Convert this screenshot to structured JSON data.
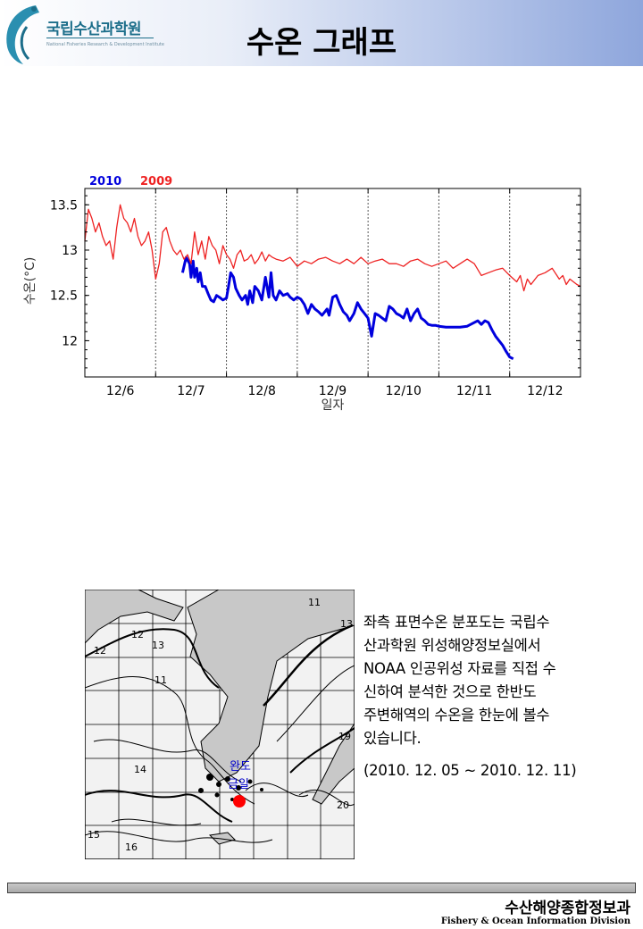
{
  "header": {
    "logo_kr": "국립수산과학원",
    "logo_en": "National Fisheries Research & Development Institute",
    "title": "수온 그래프"
  },
  "chart_data": {
    "type": "line",
    "title": "",
    "xlabel": "일자",
    "ylabel": "수온(°C)",
    "ylim": [
      11.6,
      13.68
    ],
    "xlim": [
      0,
      7
    ],
    "ytick_labels": [
      "12",
      "12.5",
      "13",
      "13.5"
    ],
    "yticks": [
      12,
      12.5,
      13,
      13.5
    ],
    "xtick_labels": [
      "12/6",
      "12/7",
      "12/8",
      "12/9",
      "12/10",
      "12/11",
      "12/12"
    ],
    "xtick_label_positions": [
      0.5,
      1.5,
      2.5,
      3.5,
      4.5,
      5.5,
      6.5
    ],
    "day_boundaries": [
      1,
      2,
      3,
      4,
      5,
      6
    ],
    "grid": "vertical-dashed",
    "legend": "top-left",
    "series": [
      {
        "name": "2010",
        "color": "#0000dd",
        "x": [
          1.38,
          1.43,
          1.48,
          1.5,
          1.53,
          1.55,
          1.58,
          1.6,
          1.63,
          1.66,
          1.7,
          1.74,
          1.78,
          1.82,
          1.86,
          1.9,
          1.95,
          2.0,
          2.03,
          2.06,
          2.1,
          2.13,
          2.18,
          2.22,
          2.27,
          2.3,
          2.33,
          2.37,
          2.4,
          2.45,
          2.5,
          2.55,
          2.6,
          2.63,
          2.66,
          2.7,
          2.75,
          2.8,
          2.86,
          2.9,
          2.95,
          3.0,
          3.05,
          3.1,
          3.15,
          3.2,
          3.25,
          3.3,
          3.35,
          3.42,
          3.45,
          3.5,
          3.55,
          3.6,
          3.65,
          3.7,
          3.74,
          3.8,
          3.85,
          3.9,
          3.95,
          4.0,
          4.05,
          4.1,
          4.15,
          4.2,
          4.25,
          4.3,
          4.35,
          4.4,
          4.45,
          4.5,
          4.55,
          4.6,
          4.65,
          4.7,
          4.75,
          4.8,
          4.85,
          4.9,
          4.95,
          5.0,
          5.1,
          5.2,
          5.3,
          5.4,
          5.5,
          5.55,
          5.6,
          5.65,
          5.7,
          5.75,
          5.8,
          5.85,
          5.9,
          5.95,
          6.0,
          6.05
        ],
        "y": [
          12.75,
          12.92,
          12.85,
          12.7,
          12.88,
          12.7,
          12.8,
          12.65,
          12.75,
          12.6,
          12.6,
          12.52,
          12.45,
          12.43,
          12.5,
          12.48,
          12.45,
          12.47,
          12.6,
          12.75,
          12.7,
          12.58,
          12.5,
          12.45,
          12.5,
          12.4,
          12.55,
          12.42,
          12.6,
          12.55,
          12.45,
          12.7,
          12.48,
          12.75,
          12.5,
          12.45,
          12.55,
          12.5,
          12.52,
          12.48,
          12.45,
          12.48,
          12.46,
          12.4,
          12.3,
          12.4,
          12.35,
          12.32,
          12.28,
          12.35,
          12.28,
          12.48,
          12.5,
          12.4,
          12.32,
          12.28,
          12.22,
          12.3,
          12.42,
          12.35,
          12.3,
          12.25,
          12.05,
          12.3,
          12.28,
          12.25,
          12.22,
          12.38,
          12.35,
          12.3,
          12.28,
          12.25,
          12.35,
          12.22,
          12.3,
          12.35,
          12.25,
          12.22,
          12.18,
          12.17,
          12.17,
          12.16,
          12.15,
          12.15,
          12.15,
          12.16,
          12.2,
          12.22,
          12.18,
          12.22,
          12.2,
          12.12,
          12.05,
          12.0,
          11.95,
          11.88,
          11.82,
          11.8
        ]
      },
      {
        "name": "2009",
        "color": "#ee2222",
        "x": [
          0.0,
          0.05,
          0.1,
          0.15,
          0.2,
          0.25,
          0.3,
          0.35,
          0.4,
          0.45,
          0.5,
          0.55,
          0.6,
          0.65,
          0.7,
          0.75,
          0.8,
          0.85,
          0.9,
          0.95,
          1.0,
          1.05,
          1.1,
          1.15,
          1.2,
          1.25,
          1.3,
          1.35,
          1.4,
          1.45,
          1.5,
          1.55,
          1.6,
          1.65,
          1.7,
          1.75,
          1.8,
          1.85,
          1.9,
          1.95,
          2.0,
          2.05,
          2.1,
          2.15,
          2.2,
          2.25,
          2.3,
          2.35,
          2.4,
          2.45,
          2.5,
          2.55,
          2.6,
          2.65,
          2.7,
          2.8,
          2.9,
          3.0,
          3.1,
          3.2,
          3.3,
          3.4,
          3.5,
          3.6,
          3.7,
          3.8,
          3.9,
          4.0,
          4.1,
          4.2,
          4.3,
          4.4,
          4.5,
          4.6,
          4.7,
          4.8,
          4.9,
          5.0,
          5.1,
          5.2,
          5.3,
          5.4,
          5.5,
          5.6,
          5.7,
          5.8,
          5.9,
          6.0,
          6.1,
          6.15,
          6.2,
          6.25,
          6.3,
          6.4,
          6.5,
          6.6,
          6.7,
          6.75,
          6.8,
          6.85,
          6.9,
          6.95,
          7.0
        ],
        "y": [
          13.1,
          13.45,
          13.35,
          13.2,
          13.3,
          13.15,
          13.05,
          13.1,
          12.9,
          13.25,
          13.5,
          13.35,
          13.3,
          13.2,
          13.35,
          13.15,
          13.05,
          13.1,
          13.2,
          13.0,
          12.68,
          12.85,
          13.2,
          13.25,
          13.1,
          13.0,
          12.95,
          13.0,
          12.9,
          12.95,
          12.85,
          13.2,
          12.95,
          13.1,
          12.9,
          13.15,
          13.05,
          13.0,
          12.85,
          13.05,
          12.95,
          12.9,
          12.8,
          12.95,
          13.0,
          12.88,
          12.9,
          12.95,
          12.85,
          12.9,
          12.98,
          12.88,
          12.95,
          12.92,
          12.9,
          12.88,
          12.92,
          12.82,
          12.88,
          12.85,
          12.9,
          12.92,
          12.88,
          12.85,
          12.9,
          12.85,
          12.92,
          12.85,
          12.88,
          12.9,
          12.85,
          12.85,
          12.82,
          12.88,
          12.9,
          12.85,
          12.82,
          12.85,
          12.88,
          12.8,
          12.85,
          12.9,
          12.85,
          12.72,
          12.75,
          12.78,
          12.8,
          12.72,
          12.65,
          12.72,
          12.55,
          12.68,
          12.62,
          12.72,
          12.75,
          12.8,
          12.68,
          12.72,
          12.62,
          12.68,
          12.65,
          12.62,
          12.6
        ]
      }
    ]
  },
  "map": {
    "location_label_line1": "완도",
    "location_label_line2": "금일",
    "contour_labels": [
      "11",
      "12",
      "13",
      "11",
      "14",
      "15",
      "16",
      "19",
      "20",
      "13"
    ],
    "marker_color": "#ff0000"
  },
  "description": {
    "line1": "좌측 표면수온 분포도는 국립수",
    "line2": "산과학원 위성해양정보실에서",
    "line3": "NOAA 인공위성 자료를 직접 수",
    "line4": "신하여 분석한 것으로  한반도",
    "line5": "주변해역의 수온을 한눈에 볼수",
    "line6": "있습니다.",
    "period": "(2010. 12. 05 ~ 2010. 12. 11)"
  },
  "footer": {
    "kr": "수산해양종합정보과",
    "en": "Fishery & Ocean Information Division"
  }
}
